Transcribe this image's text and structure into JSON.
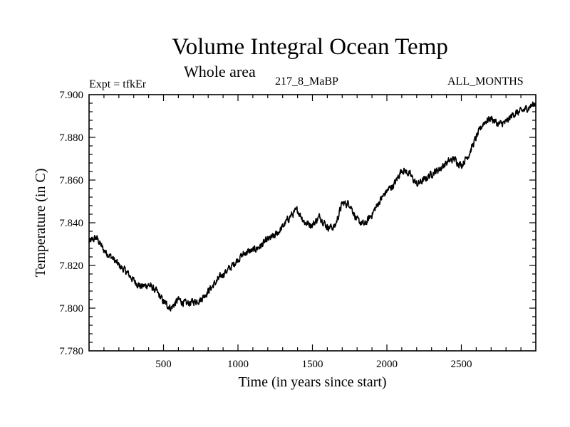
{
  "header": {
    "title": "Volume Integral Ocean Temp",
    "subtitle": "Whole area",
    "expt_label": "Expt = tfkEr",
    "experiment_id": "217_8_MaBP",
    "period": "ALL_MONTHS"
  },
  "chart_data": {
    "type": "line",
    "title": "Volume Integral Ocean Temp",
    "subtitle": "Whole area",
    "xlabel": "Time (in years since start)",
    "ylabel": "Temperature (in C)",
    "xlim": [
      0,
      3000
    ],
    "ylim": [
      7.78,
      7.9
    ],
    "xticks": [
      500,
      1000,
      1500,
      2000,
      2500
    ],
    "xtick_labels": [
      "500",
      "1000",
      "1500",
      "2000",
      "2500"
    ],
    "yticks": [
      7.78,
      7.8,
      7.82,
      7.84,
      7.86,
      7.88,
      7.9
    ],
    "ytick_labels": [
      "7.780",
      "7.800",
      "7.820",
      "7.840",
      "7.860",
      "7.880",
      "7.900"
    ],
    "grid": false,
    "line_color": "#000000",
    "series": [
      {
        "x": [
          0,
          50,
          100,
          150,
          200,
          250,
          300,
          350,
          400,
          450,
          500,
          550,
          600,
          650,
          700,
          750,
          800,
          850,
          900,
          950,
          1000,
          1050,
          1100,
          1150,
          1200,
          1250,
          1300,
          1350,
          1400,
          1450,
          1500,
          1550,
          1600,
          1650,
          1700,
          1750,
          1800,
          1850,
          1900,
          1950,
          2000,
          2050,
          2100,
          2150,
          2200,
          2250,
          2300,
          2350,
          2400,
          2450,
          2500,
          2550,
          2600,
          2650,
          2700,
          2750,
          2800,
          2850,
          2900,
          2950,
          3000
        ],
        "values": [
          7.831,
          7.833,
          7.827,
          7.824,
          7.82,
          7.817,
          7.813,
          7.81,
          7.811,
          7.808,
          7.803,
          7.8,
          7.804,
          7.802,
          7.803,
          7.804,
          7.808,
          7.812,
          7.816,
          7.819,
          7.823,
          7.826,
          7.827,
          7.829,
          7.832,
          7.834,
          7.838,
          7.843,
          7.846,
          7.84,
          7.839,
          7.843,
          7.838,
          7.838,
          7.849,
          7.849,
          7.841,
          7.839,
          7.844,
          7.85,
          7.855,
          7.858,
          7.865,
          7.863,
          7.858,
          7.86,
          7.863,
          7.865,
          7.868,
          7.87,
          7.867,
          7.872,
          7.88,
          7.887,
          7.889,
          7.886,
          7.887,
          7.891,
          7.892,
          7.894,
          7.896
        ]
      }
    ]
  }
}
